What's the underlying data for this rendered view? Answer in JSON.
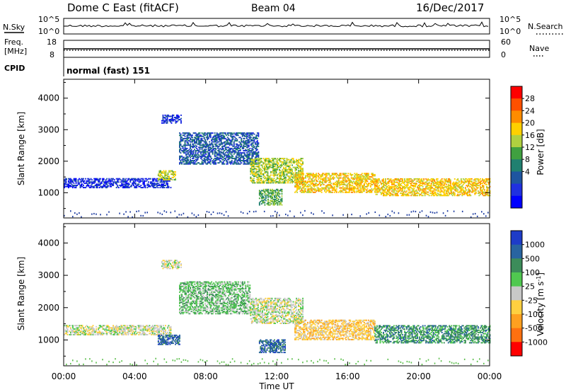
{
  "header": {
    "station": "Dome C East (fitACF)",
    "beam": "Beam 04",
    "date": "16/Dec/2017"
  },
  "top_panels": {
    "nsky_label": "N.Sky",
    "nsky_ticks": [
      "10^5",
      "10^0"
    ],
    "nsearch_label": "N.Search",
    "freq_label_line1": "Freq.",
    "freq_label_line2": "[MHz]",
    "freq_ticks": [
      "18",
      "8"
    ],
    "nave_label": "Nave",
    "nave_ticks": [
      "60",
      "0"
    ],
    "cpid_label": "CPID",
    "cpid_value": "normal (fast) 151"
  },
  "chart_data": [
    {
      "type": "heatmap",
      "name": "power",
      "ylabel": "Slant Range [km]",
      "xlabel": "",
      "yticks": [
        1000,
        2000,
        3000,
        4000
      ],
      "ylim": [
        200,
        4600
      ],
      "xlim": [
        0,
        24
      ],
      "colorbar_label": "Power [dB]",
      "colorbar_ticks": [
        "28",
        "24",
        "20",
        "16",
        "12",
        "8",
        "4"
      ],
      "colorbar_colors": [
        "#ff0000",
        "#ff5000",
        "#ff8c00",
        "#ffd000",
        "#b0d040",
        "#40a040",
        "#208070",
        "#1e55a0",
        "#2030e0",
        "#0000ff"
      ],
      "regions": [
        {
          "t0": 0.0,
          "t1": 6.0,
          "r0": 1150,
          "r1": 1450,
          "level": 1
        },
        {
          "t0": 5.3,
          "t1": 6.3,
          "r0": 1400,
          "r1": 1700,
          "level": 5
        },
        {
          "t0": 5.5,
          "t1": 6.6,
          "r0": 3200,
          "r1": 3450,
          "level": 1
        },
        {
          "t0": 6.5,
          "t1": 11.0,
          "r0": 1900,
          "r1": 2900,
          "level": 2
        },
        {
          "t0": 10.5,
          "t1": 13.5,
          "r0": 1300,
          "r1": 2100,
          "level": 5
        },
        {
          "t0": 11.0,
          "t1": 12.3,
          "r0": 600,
          "r1": 1100,
          "level": 4
        },
        {
          "t0": 13.0,
          "t1": 17.5,
          "r0": 1000,
          "r1": 1600,
          "level": 6
        },
        {
          "t0": 17.5,
          "t1": 24.0,
          "r0": 900,
          "r1": 1450,
          "level": 6
        }
      ]
    },
    {
      "type": "heatmap",
      "name": "velocity",
      "ylabel": "Slant Range [km]",
      "xlabel": "Time UT",
      "xticks": [
        "00:00",
        "04:00",
        "08:00",
        "12:00",
        "16:00",
        "20:00",
        "00:00"
      ],
      "yticks": [
        1000,
        2000,
        3000,
        4000
      ],
      "ylim": [
        200,
        4600
      ],
      "xlim": [
        0,
        24
      ],
      "colorbar_label": "Velocity [m s",
      "colorbar_sup": "-1",
      "colorbar_ticks": [
        "1000",
        "500",
        "100",
        "25",
        "-25",
        "-100",
        "-500",
        "-1000"
      ],
      "colorbar_colors": [
        "#1e3cc8",
        "#2864a0",
        "#3c8c5a",
        "#50c850",
        "#c8c8c8",
        "#ffd040",
        "#ffa020",
        "#ff7010",
        "#ff0000"
      ],
      "regions": [
        {
          "t0": 0.0,
          "t1": 6.0,
          "r0": 1150,
          "r1": 1450,
          "level": 4
        },
        {
          "t0": 5.5,
          "t1": 6.6,
          "r0": 3200,
          "r1": 3450,
          "level": 4
        },
        {
          "t0": 5.3,
          "t1": 6.5,
          "r0": 850,
          "r1": 1150,
          "level": 7
        },
        {
          "t0": 6.5,
          "t1": 10.5,
          "r0": 1800,
          "r1": 2800,
          "level": 5
        },
        {
          "t0": 10.5,
          "t1": 13.5,
          "r0": 1500,
          "r1": 2300,
          "level": 4
        },
        {
          "t0": 11.0,
          "t1": 12.5,
          "r0": 600,
          "r1": 1000,
          "level": 7
        },
        {
          "t0": 13.0,
          "t1": 17.5,
          "r0": 1000,
          "r1": 1600,
          "level": 3
        },
        {
          "t0": 17.5,
          "t1": 24.0,
          "r0": 900,
          "r1": 1450,
          "level": 6
        }
      ]
    }
  ],
  "colors": {
    "power_noise": "#1e3ca0",
    "velocity_noise": "#60c050"
  }
}
